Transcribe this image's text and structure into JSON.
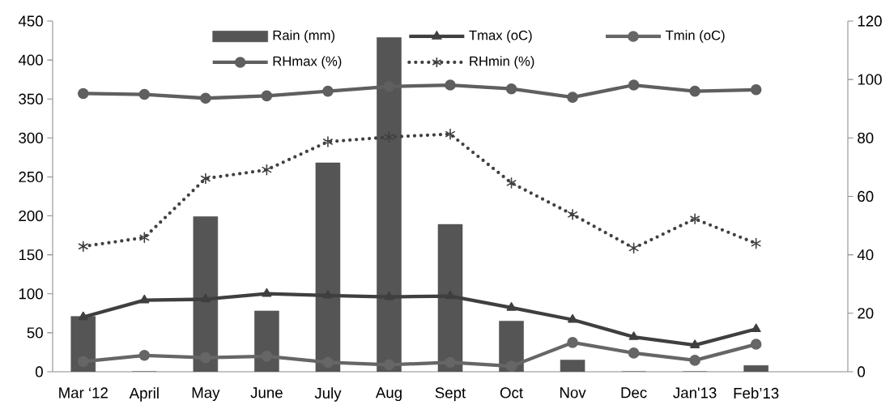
{
  "chart_data": {
    "type": "bar",
    "categories": [
      "Mar ‘12",
      "April",
      "May",
      "June",
      "July",
      "Aug",
      "Sept",
      "Oct",
      "Nov",
      "Dec",
      "Jan'13",
      "Feb’13",
      null
    ],
    "series": [
      {
        "name": "Rain (mm)",
        "type": "bar",
        "axis": "y",
        "color": "#555555",
        "values": [
          71,
          0,
          199,
          78,
          268,
          429,
          189,
          65,
          15,
          0,
          0,
          8,
          null
        ]
      },
      {
        "name": "Tmax (oC)",
        "type": "line",
        "axis": "y2",
        "color": "#3f3f3f",
        "marker": "triangle",
        "line_style": "solid",
        "values": [
          18.7,
          24.5,
          24.8,
          26.7,
          26.1,
          25.6,
          25.9,
          21.9,
          17.8,
          11.9,
          9.1,
          14.6,
          null
        ]
      },
      {
        "name": "Tmin (oC)",
        "type": "line",
        "axis": "y2",
        "color": "#666666",
        "marker": "circle",
        "line_style": "solid",
        "values": [
          3.5,
          5.6,
          4.8,
          5.3,
          3.2,
          2.4,
          3.2,
          1.9,
          10,
          6.4,
          3.9,
          9.4,
          null
        ]
      },
      {
        "name": "RHmax (%)",
        "type": "line",
        "axis": "y2",
        "color": "#5f5f5f",
        "marker": "circle",
        "line_style": "solid",
        "values": [
          95.2,
          94.9,
          93.6,
          94.4,
          96,
          97.6,
          98.1,
          96.8,
          93.9,
          98.1,
          96,
          96.5,
          null
        ]
      },
      {
        "name": "RHmin (%)",
        "type": "line",
        "axis": "y2",
        "color": "#404040",
        "marker": "cross",
        "line_style": "dotted",
        "values": [
          42.9,
          45.9,
          66.1,
          69.1,
          78.7,
          80.3,
          81.3,
          64.6,
          53.8,
          42.3,
          52.3,
          43.9,
          null
        ]
      }
    ],
    "ylim": [
      0,
      450
    ],
    "yticks": [
      0,
      50,
      100,
      150,
      200,
      250,
      300,
      350,
      400,
      450
    ],
    "y2lim": [
      0,
      120
    ],
    "y2ticks": [
      0,
      20,
      40,
      60,
      80,
      100,
      120
    ],
    "legend": "top",
    "grid": false
  }
}
